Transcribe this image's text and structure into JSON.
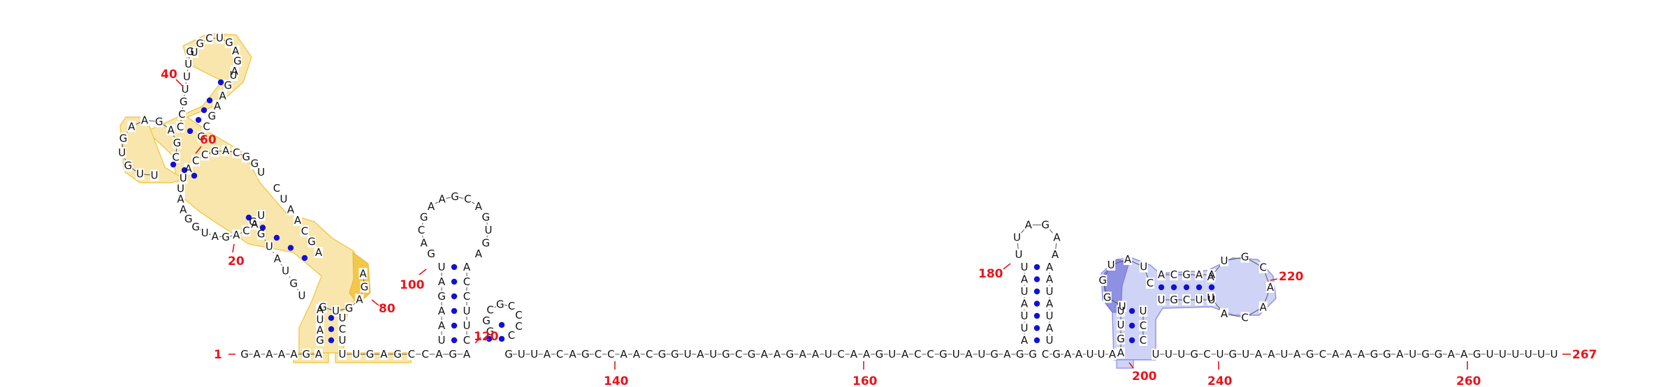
{
  "colors": {
    "nucleotide": "#111111",
    "number": "#e8141b",
    "base_pair": "#1010d8",
    "highlight_yellow": "#f8e6ad",
    "highlight_yellow_strong": "#f3c84a",
    "highlight_blue": "#cfd3f5",
    "highlight_blue_strong": "#8d90e3"
  },
  "main_strand": {
    "seg1": [
      "G",
      "A",
      "A",
      "A",
      "A",
      "G",
      "A"
    ],
    "seg2": [
      "U",
      "U",
      "G",
      "A",
      "G",
      "C",
      "C",
      "A",
      "G",
      "A"
    ],
    "seg3": [
      "G",
      "U",
      "U",
      "A",
      "C",
      "A",
      "G",
      "C",
      "C",
      "A",
      "A",
      "C",
      "G",
      "G",
      "U",
      "A",
      "U",
      "G",
      "C",
      "G",
      "A",
      "A",
      "G",
      "A",
      "A",
      "U",
      "C",
      "A",
      "A",
      "G",
      "U",
      "A",
      "C",
      "C",
      "G",
      "U",
      "A",
      "U",
      "G",
      "A",
      "G",
      "G"
    ],
    "seg4": [
      "C",
      "G",
      "A",
      "A",
      "U",
      "U",
      "A"
    ],
    "seg5": [
      "U",
      "U",
      "U",
      "G",
      "C",
      "U",
      "G",
      "U",
      "A",
      "A",
      "U",
      "A",
      "G",
      "C",
      "A",
      "A",
      "A",
      "G",
      "G",
      "A",
      "U",
      "G",
      "G",
      "A",
      "A",
      "G",
      "U",
      "U",
      "U",
      "U",
      "U",
      "U"
    ]
  },
  "hairpin_100": {
    "left": [
      "U",
      "A",
      "A",
      "G",
      "A",
      "U"
    ],
    "right": [
      "C",
      "U",
      "U",
      "C",
      "C",
      "A"
    ],
    "loop": [
      "G",
      "A",
      "C",
      "G",
      "A",
      "A",
      "G",
      "C",
      "A",
      "G",
      "U",
      "G",
      "A"
    ]
  },
  "hairpin_120": {
    "loop": [
      "G",
      "G",
      "C",
      "G",
      "C",
      "C",
      "C",
      "C"
    ]
  },
  "domain_yellow": {
    "left_column": [
      "G",
      "A",
      "U",
      "A"
    ],
    "right_column": [
      "U",
      "C",
      "U"
    ],
    "loop_right": [
      "G",
      "U",
      "G",
      "A",
      "G",
      "A"
    ],
    "diag_a_left": [
      "U",
      "G",
      "U",
      "A",
      "U",
      "G",
      "G"
    ],
    "diag_a_right": [
      "A",
      "G",
      "C",
      "A",
      "A",
      "U",
      "C"
    ],
    "outer_ring": [
      "U",
      "A",
      "C",
      "A",
      "G",
      "A",
      "U",
      "G",
      "G",
      "A",
      "A",
      "U",
      "U",
      "A",
      "C",
      "C",
      "G",
      "A",
      "C",
      "G",
      "G",
      "U"
    ],
    "multiloop": [
      "U",
      "U",
      "G",
      "U",
      "G",
      "A",
      "A",
      "G",
      "A",
      "G",
      "C"
    ],
    "top_stem_left": [
      "C",
      "C",
      "G",
      "U",
      "U",
      "U",
      "G"
    ],
    "top_stem_right": [
      "U",
      "G",
      "A",
      "A",
      "G",
      "C",
      "G"
    ],
    "top_loop": [
      "U",
      "G",
      "C",
      "U",
      "G",
      "A",
      "G",
      "A"
    ]
  },
  "hairpin_180": {
    "left": [
      "A",
      "U",
      "U",
      "A",
      "U",
      "A",
      "U"
    ],
    "right": [
      "U",
      "A",
      "U",
      "A",
      "U",
      "A",
      "A"
    ],
    "loop": [
      "U",
      "U",
      "A",
      "G",
      "A",
      "A"
    ]
  },
  "domain_blue": {
    "left_column": [
      "A",
      "G",
      "U",
      "U"
    ],
    "right_column": [
      "C",
      "C",
      "U"
    ],
    "loop_left": [
      "U",
      "G",
      "G",
      "U",
      "A",
      "U",
      "C"
    ],
    "stem_top": [
      "A",
      "C",
      "G",
      "A",
      "A"
    ],
    "stem_bottom": [
      "U",
      "G",
      "C",
      "U",
      "U"
    ],
    "loop_right": [
      "A",
      "U",
      "G",
      "C",
      "A",
      "A",
      "C",
      "A",
      "U"
    ]
  },
  "numbers": {
    "n1": "1",
    "n20": "20",
    "n40": "40",
    "n60": "60",
    "n80": "80",
    "n100": "100",
    "n120": "120",
    "n140": "140",
    "n160": "160",
    "n180": "180",
    "n200": "200",
    "n220": "220",
    "n240": "240",
    "n260": "260",
    "n267": "267"
  }
}
